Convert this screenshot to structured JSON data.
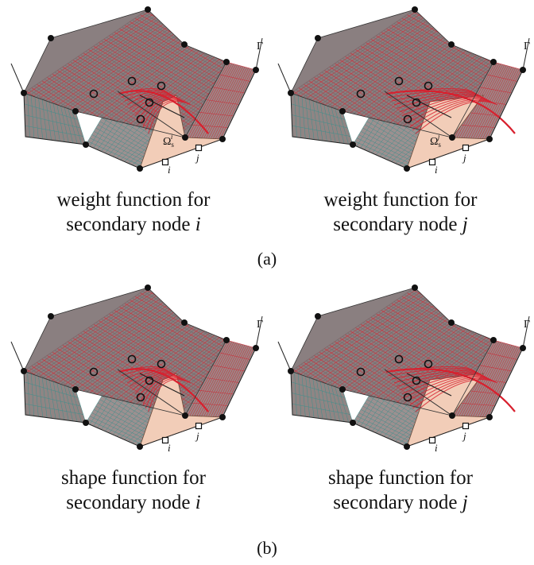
{
  "panels": [
    {
      "caption_line1": "weight function for",
      "caption_line2": "secondary node",
      "node": "i",
      "omega_sup": "i",
      "gamma": "Γ"
    },
    {
      "caption_line1": "weight function for",
      "caption_line2": "secondary node",
      "node": "j",
      "omega_sup": "j",
      "gamma": "Γ"
    },
    {
      "caption_line1": "shape function for",
      "caption_line2": "secondary node",
      "node": "i",
      "gamma": "Γ"
    },
    {
      "caption_line1": "shape function for",
      "caption_line2": "secondary node",
      "node": "j",
      "gamma": "Γ"
    }
  ],
  "labels": {
    "node_i": "i",
    "node_j": "j",
    "omega": "Ω",
    "omega_sub": "s"
  },
  "subfigures": [
    "(a)",
    "(b)"
  ],
  "colors": {
    "surface": "#8a7f80",
    "mesh_red": "#c8323c",
    "mesh_teal": "#3f8f8c",
    "domain": "#f2cdb8",
    "bump": "#d8202e"
  }
}
